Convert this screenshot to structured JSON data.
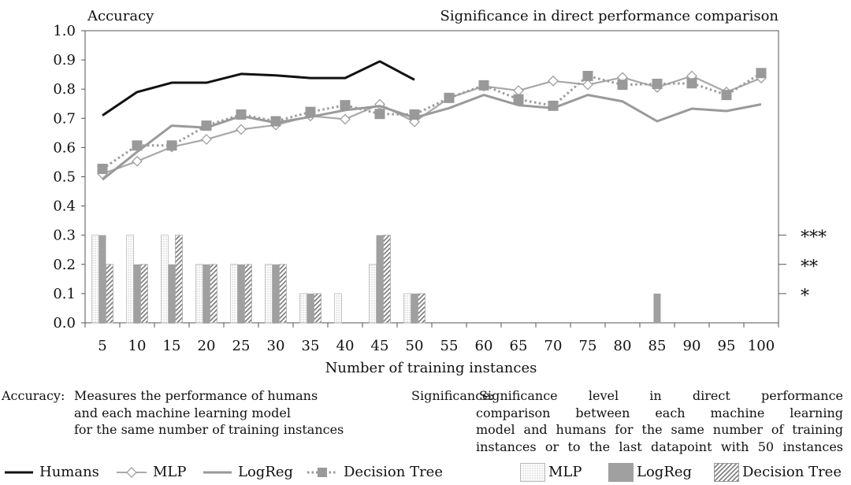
{
  "chart_data": {
    "type": "line+bar",
    "title_left": "Accuracy",
    "title_right": "Significance in direct performance comparison",
    "xlabel": "Number of training instances",
    "categories": [
      "5",
      "10",
      "15",
      "20",
      "25",
      "30",
      "35",
      "40",
      "45",
      "50",
      "55",
      "60",
      "65",
      "70",
      "75",
      "80",
      "85",
      "90",
      "95",
      "100"
    ],
    "ylim": [
      0,
      1.0
    ],
    "yticks": [
      "0.0",
      "0.1",
      "0.2",
      "0.3",
      "0.4",
      "0.5",
      "0.6",
      "0.7",
      "0.8",
      "0.9",
      "1.0"
    ],
    "right_axis_labels": [
      {
        "value": 0.3,
        "label": "***"
      },
      {
        "value": 0.2,
        "label": "**"
      },
      {
        "value": 0.1,
        "label": "*"
      }
    ],
    "line_series": [
      {
        "name": "Humans",
        "style": "humans",
        "values": [
          0.71,
          0.79,
          0.822,
          0.822,
          0.852,
          0.847,
          0.838,
          0.838,
          0.895,
          0.832,
          null,
          null,
          null,
          null,
          null,
          null,
          null,
          null,
          null,
          null
        ]
      },
      {
        "name": "MLP",
        "style": "mlp",
        "values": [
          0.51,
          0.553,
          0.602,
          0.628,
          0.662,
          0.677,
          0.708,
          0.697,
          0.748,
          0.688,
          0.77,
          0.81,
          0.795,
          0.828,
          0.815,
          0.84,
          0.806,
          0.845,
          0.79,
          0.838
        ]
      },
      {
        "name": "LogReg",
        "style": "logreg",
        "values": [
          0.49,
          0.585,
          0.675,
          0.668,
          0.708,
          0.685,
          0.705,
          0.728,
          0.742,
          0.702,
          0.735,
          0.78,
          0.745,
          0.735,
          0.78,
          0.758,
          0.69,
          0.733,
          0.725,
          0.748
        ]
      },
      {
        "name": "Decision Tree",
        "style": "dt",
        "values": [
          0.527,
          0.607,
          0.607,
          0.675,
          0.713,
          0.69,
          0.722,
          0.745,
          0.715,
          0.713,
          0.77,
          0.813,
          0.765,
          0.743,
          0.845,
          0.815,
          0.818,
          0.82,
          0.78,
          0.855
        ]
      }
    ],
    "bar_series": [
      {
        "name": "MLP",
        "style": "dots",
        "values": [
          0.3,
          0.3,
          0.3,
          0.2,
          0.2,
          0.2,
          0.1,
          0.1,
          0.2,
          0.1,
          0,
          0,
          0,
          0,
          0,
          0,
          0,
          0,
          0,
          0
        ]
      },
      {
        "name": "LogReg",
        "style": "gray",
        "values": [
          0.3,
          0.2,
          0.2,
          0.2,
          0.2,
          0.2,
          0.1,
          0,
          0.3,
          0.1,
          0,
          0,
          0,
          0,
          0,
          0,
          0.1,
          0,
          0,
          0
        ]
      },
      {
        "name": "Decision Tree",
        "style": "hatch",
        "values": [
          0.2,
          0.2,
          0.3,
          0.2,
          0.2,
          0.2,
          0.1,
          0,
          0.3,
          0.1,
          0,
          0,
          0,
          0,
          0,
          0,
          0,
          0,
          0,
          0
        ]
      }
    ]
  },
  "descriptions": {
    "accuracy": {
      "term": "Accuracy:",
      "lines": [
        "Measures the performance of humans",
        "and each machine learning model",
        "for the same number of training instances"
      ]
    },
    "significance": {
      "term": "Significance:",
      "lines": [
        "Significance level in direct performance",
        "comparison between each machine learning",
        "model and humans for the same number of training",
        "instances or to the last datapoint with 50 instances"
      ]
    }
  },
  "legend": {
    "lines": [
      "Humans",
      "MLP",
      "LogReg",
      "Decision Tree"
    ],
    "bars": [
      "MLP",
      "LogReg",
      "Decision Tree"
    ]
  }
}
